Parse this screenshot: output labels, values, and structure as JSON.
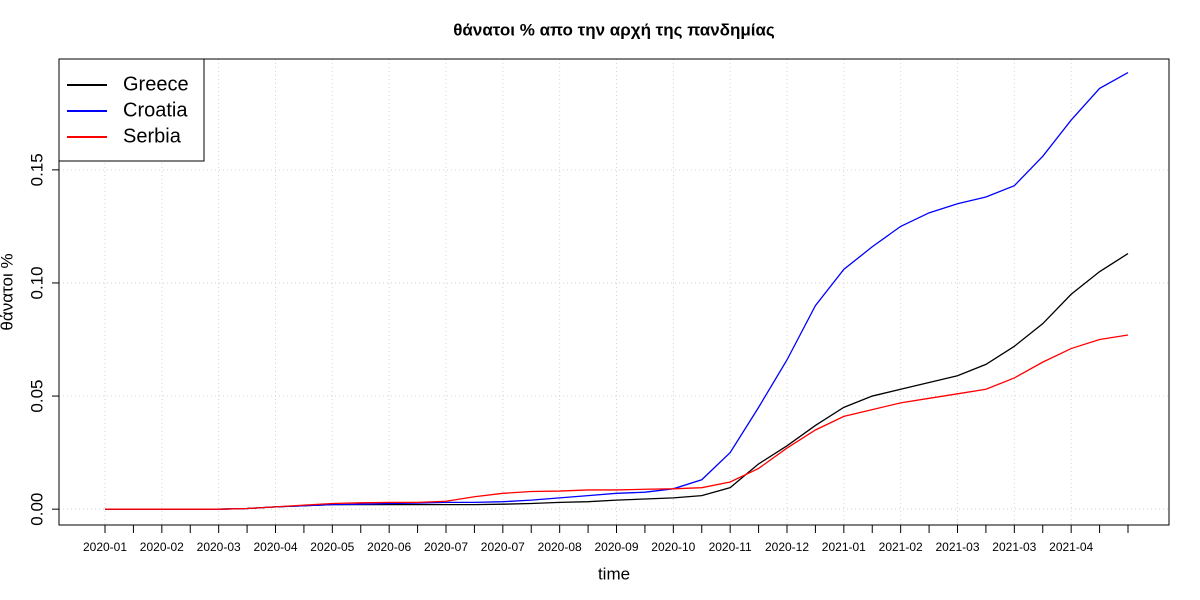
{
  "chart_data": {
    "type": "line",
    "title": "θάνατοι % απο την αρχή της πανδημίας",
    "x_label": "time",
    "y_label": "θάνατοι %",
    "categories": [
      "2020-01",
      null,
      "2020-02",
      null,
      "2020-03",
      null,
      "2020-04",
      null,
      "2020-05",
      null,
      "2020-06",
      null,
      "2020-07",
      null,
      "2020-07",
      null,
      "2020-08",
      null,
      "2020-09",
      null,
      "2020-10",
      null,
      "2020-11",
      null,
      "2020-12",
      null,
      "2021-01",
      null,
      "2021-02",
      null,
      "2021-03",
      null,
      "2021-03",
      null,
      "2021-04",
      null,
      null
    ],
    "series": [
      {
        "name": "Greece",
        "color": "#000000",
        "values": [
          0,
          0,
          0,
          0,
          0,
          0.0003,
          0.001,
          0.0015,
          0.002,
          0.002,
          0.002,
          0.002,
          0.002,
          0.002,
          0.0022,
          0.0025,
          0.003,
          0.0033,
          0.004,
          0.0045,
          0.005,
          0.006,
          0.0095,
          0.02,
          0.028,
          0.037,
          0.045,
          0.05,
          0.053,
          0.056,
          0.059,
          0.064,
          0.072,
          0.082,
          0.095,
          0.105,
          0.113
        ]
      },
      {
        "name": "Croatia",
        "color": "#0000ff",
        "values": [
          0,
          0,
          0,
          0,
          0,
          0.0003,
          0.001,
          0.0015,
          0.002,
          0.0022,
          0.0025,
          0.0027,
          0.003,
          0.003,
          0.0033,
          0.004,
          0.005,
          0.006,
          0.007,
          0.0075,
          0.009,
          0.013,
          0.025,
          0.045,
          0.066,
          0.09,
          0.106,
          0.116,
          0.125,
          0.131,
          0.135,
          0.138,
          0.143,
          0.156,
          0.172,
          0.186,
          0.193
        ]
      },
      {
        "name": "Serbia",
        "color": "#ff0000",
        "values": [
          0,
          0,
          0,
          0,
          0,
          0.0003,
          0.001,
          0.0018,
          0.0025,
          0.0028,
          0.003,
          0.003,
          0.0035,
          0.0055,
          0.007,
          0.0078,
          0.008,
          0.0085,
          0.0085,
          0.0088,
          0.009,
          0.0095,
          0.012,
          0.018,
          0.027,
          0.035,
          0.041,
          0.044,
          0.047,
          0.049,
          0.051,
          0.053,
          0.058,
          0.065,
          0.071,
          0.075,
          0.077
        ]
      }
    ],
    "ylim": [
      -0.007,
      0.199
    ],
    "yticks": [
      {
        "value": 0,
        "label": "0.00"
      },
      {
        "value": 0.05,
        "label": "0.05"
      },
      {
        "value": 0.1,
        "label": "0.10"
      },
      0.15
    ],
    "grid": true,
    "legend": "top-left"
  }
}
